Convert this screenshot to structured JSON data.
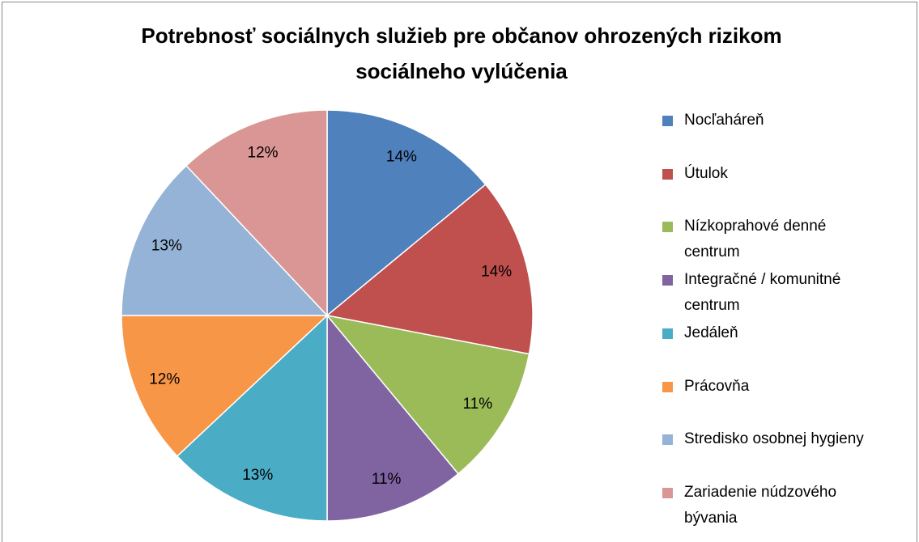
{
  "chart_data": {
    "type": "pie",
    "title": "Potrebnosť sociálnych služieb pre občanov ohrozených rizikom sociálneho vylúčenia",
    "categories": [
      "Nocľaháreň",
      "Útulok",
      "Nízkoprahové denné centrum",
      "Integračné / komunitné centrum",
      "Jedáleň",
      "Prácovňa",
      "Stredisko osobnej hygieny",
      "Zariadenie núdzového bývania"
    ],
    "values": [
      14,
      14,
      11,
      11,
      13,
      12,
      13,
      12
    ],
    "value_labels": [
      "14%",
      "14%",
      "11%",
      "11%",
      "13%",
      "12%",
      "13%",
      "12%"
    ],
    "colors": [
      "#4f81bd",
      "#c0504d",
      "#9bbb59",
      "#8064a2",
      "#4bacc6",
      "#f79646",
      "#95b3d7",
      "#d99694"
    ],
    "legend": "right"
  }
}
